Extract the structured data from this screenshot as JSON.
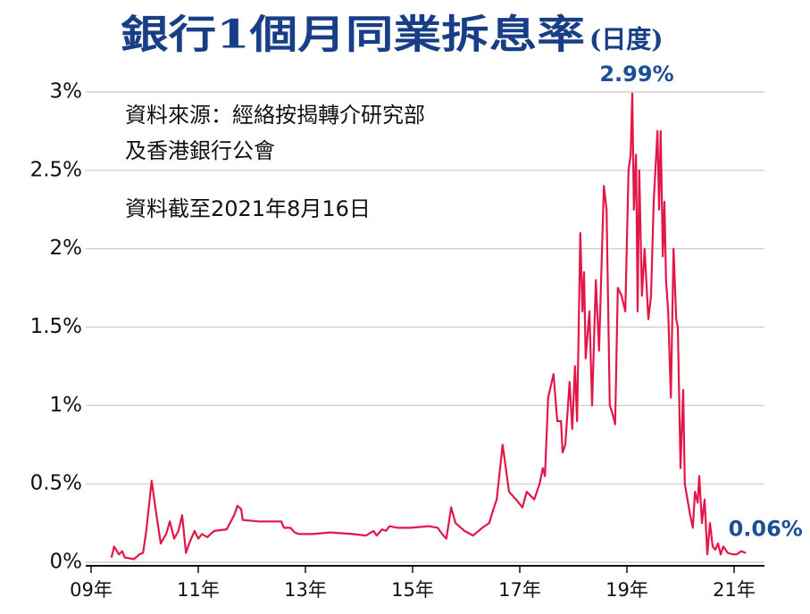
{
  "chart_data": {
    "type": "line",
    "title": "銀行1個月同業拆息率",
    "subtitle": "(日度)",
    "annotations_text": [
      "資料來源：經絡按揭轉介研究部",
      "及香港銀行公會",
      "資料截至2021年8月16日"
    ],
    "annotations": [
      {
        "x": 2019.6,
        "value": 2.99,
        "label": "2.99%"
      },
      {
        "x": 2021.72,
        "value": 0.06,
        "label": "0.06%"
      }
    ],
    "xlim": [
      2009.4,
      2022.0
    ],
    "xticks": [
      {
        "value": 2009.5,
        "label": "09年"
      },
      {
        "value": 2011.5,
        "label": "11年"
      },
      {
        "value": 2013.5,
        "label": "13年"
      },
      {
        "value": 2015.5,
        "label": "15年"
      },
      {
        "value": 2017.5,
        "label": "17年"
      },
      {
        "value": 2019.5,
        "label": "19年"
      },
      {
        "value": 2021.5,
        "label": "21年"
      }
    ],
    "ylim": [
      0,
      3
    ],
    "yticks": [
      {
        "value": 0,
        "label": "0%"
      },
      {
        "value": 0.5,
        "label": "0.5%"
      },
      {
        "value": 1,
        "label": "1%"
      },
      {
        "value": 1.5,
        "label": "1.5%"
      },
      {
        "value": 2,
        "label": "2%"
      },
      {
        "value": 2.5,
        "label": "2.5%"
      },
      {
        "value": 3,
        "label": "3%"
      }
    ],
    "grid": true,
    "x": [
      2009.88,
      2009.93,
      2010.02,
      2010.08,
      2010.13,
      2010.3,
      2010.4,
      2010.47,
      2010.53,
      2010.63,
      2010.72,
      2010.8,
      2010.9,
      2010.97,
      2011.05,
      2011.13,
      2011.2,
      2011.27,
      2011.33,
      2011.43,
      2011.5,
      2011.57,
      2011.67,
      2011.73,
      2011.8,
      2012.03,
      2012.17,
      2012.23,
      2012.3,
      2012.33,
      2012.63,
      2013.05,
      2013.1,
      2013.22,
      2013.3,
      2013.38,
      2013.63,
      2013.97,
      2014.38,
      2014.63,
      2014.77,
      2014.83,
      2014.93,
      2015.0,
      2015.07,
      2015.22,
      2015.47,
      2015.8,
      2015.97,
      2016.05,
      2016.13,
      2016.22,
      2016.3,
      2016.47,
      2016.63,
      2016.8,
      2016.93,
      2017.0,
      2017.07,
      2017.18,
      2017.3,
      2017.43,
      2017.55,
      2017.63,
      2017.77,
      2017.87,
      2017.93,
      2017.97,
      2018.03,
      2018.13,
      2018.2,
      2018.27,
      2018.3,
      2018.35,
      2018.43,
      2018.48,
      2018.53,
      2018.57,
      2018.63,
      2018.67,
      2018.7,
      2018.73,
      2018.8,
      2018.85,
      2018.92,
      2018.98,
      2019.07,
      2019.12,
      2019.18,
      2019.23,
      2019.28,
      2019.33,
      2019.4,
      2019.47,
      2019.53,
      2019.57,
      2019.6,
      2019.63,
      2019.67,
      2019.7,
      2019.73,
      2019.78,
      2019.83,
      2019.9,
      2019.95,
      2020.0,
      2020.07,
      2020.1,
      2020.13,
      2020.17,
      2020.2,
      2020.23,
      2020.27,
      2020.32,
      2020.37,
      2020.42,
      2020.45,
      2020.5,
      2020.55,
      2020.58,
      2020.63,
      2020.68,
      2020.73,
      2020.77,
      2020.82,
      2020.85,
      2020.9,
      2020.95,
      2021.0,
      2021.05,
      2021.1,
      2021.15,
      2021.2,
      2021.25,
      2021.3,
      2021.38,
      2021.47,
      2021.55,
      2021.63,
      2021.72
    ],
    "series": [
      {
        "name": "1個月同業拆息率",
        "color": "#e3164a",
        "values": [
          0.03,
          0.1,
          0.05,
          0.07,
          0.03,
          0.02,
          0.05,
          0.06,
          0.2,
          0.52,
          0.3,
          0.12,
          0.18,
          0.26,
          0.15,
          0.2,
          0.3,
          0.06,
          0.12,
          0.2,
          0.15,
          0.18,
          0.16,
          0.18,
          0.2,
          0.21,
          0.3,
          0.36,
          0.34,
          0.27,
          0.26,
          0.26,
          0.22,
          0.22,
          0.19,
          0.18,
          0.18,
          0.19,
          0.18,
          0.17,
          0.2,
          0.17,
          0.21,
          0.2,
          0.23,
          0.22,
          0.22,
          0.23,
          0.22,
          0.18,
          0.15,
          0.35,
          0.25,
          0.2,
          0.17,
          0.22,
          0.25,
          0.33,
          0.4,
          0.75,
          0.45,
          0.4,
          0.35,
          0.45,
          0.4,
          0.5,
          0.6,
          0.55,
          1.05,
          1.2,
          0.9,
          0.9,
          0.7,
          0.75,
          1.15,
          0.85,
          1.25,
          0.9,
          2.1,
          1.6,
          1.85,
          1.3,
          1.6,
          1.0,
          1.8,
          1.35,
          2.4,
          2.25,
          1.0,
          0.95,
          0.88,
          1.75,
          1.7,
          1.6,
          2.5,
          2.6,
          2.99,
          2.25,
          2.6,
          1.6,
          2.5,
          1.7,
          2.0,
          1.55,
          1.7,
          2.3,
          2.75,
          2.25,
          2.75,
          1.95,
          2.3,
          1.8,
          1.6,
          1.05,
          2.0,
          1.55,
          1.5,
          0.6,
          1.1,
          0.5,
          0.4,
          0.3,
          0.22,
          0.45,
          0.38,
          0.55,
          0.25,
          0.4,
          0.05,
          0.25,
          0.1,
          0.08,
          0.12,
          0.05,
          0.1,
          0.06,
          0.05,
          0.05,
          0.07,
          0.06
        ]
      }
    ]
  }
}
